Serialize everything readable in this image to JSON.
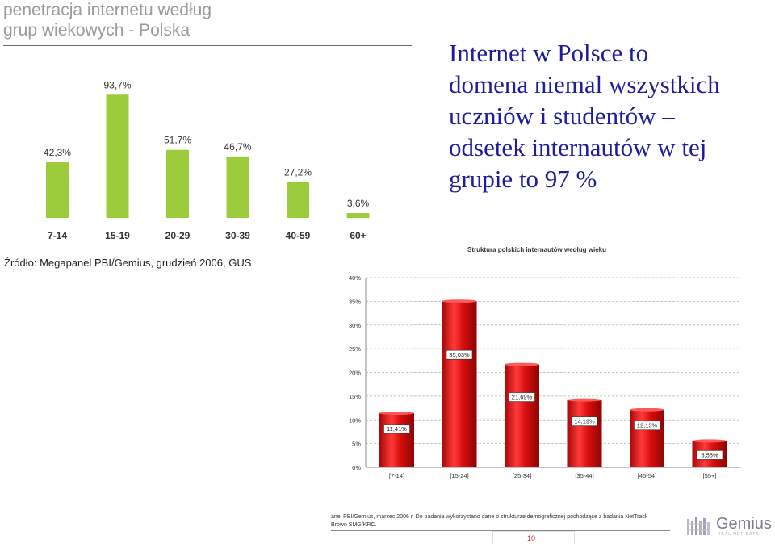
{
  "left_panel": {
    "title_line1": "penetracja internetu według",
    "title_line2": "grup wiekowych - Polska",
    "source": "Źródło: Megapanel PBI/Gemius, grudzień 2006, GUS"
  },
  "headline": {
    "line1": "Internet w Polsce to",
    "line2": "domena niemal wszystkich",
    "line3": "uczniów i studentów –",
    "line4": "odsetek internautów w tej",
    "line5": "grupie to 97 %"
  },
  "right_chart": {
    "title": "Struktura polskich internautów według wieku"
  },
  "footer": {
    "footnote_line1": "anel PBI/Gemius, marzec 2006 r. Do badania wykorzystano dane o strukturze demograficznej pochodzące z badania NetTrack",
    "footnote_line2": "Brown SMG/KRC.",
    "page_number": "10",
    "logo_text": "Gemius",
    "logo_tagline": "REAL NET DATA"
  },
  "colors": {
    "left_bar": "#9ccb3b",
    "right_bar": "#d80f0f",
    "headline": "#1d1d9a"
  },
  "chart_data": [
    {
      "type": "bar",
      "title": "penetracja internetu według grup wiekowych - Polska",
      "categories": [
        "7-14",
        "15-19",
        "20-29",
        "30-39",
        "40-59",
        "60+"
      ],
      "values": [
        42.3,
        93.7,
        51.7,
        46.7,
        27.2,
        3.6
      ],
      "value_labels": [
        "42,3%",
        "93,7%",
        "51,7%",
        "46,7%",
        "27,2%",
        "3,6%"
      ],
      "ylim": [
        0,
        100
      ],
      "grid": false
    },
    {
      "type": "bar",
      "title": "Struktura polskich internautów według wieku",
      "categories": [
        "[7-14]",
        "[15-24]",
        "[25-34]",
        "[35-44]",
        "[45-54]",
        "[55+]"
      ],
      "values": [
        11.41,
        35.03,
        21.69,
        14.19,
        12.13,
        5.55
      ],
      "value_labels": [
        "11,41%",
        "35,03%",
        "21,69%",
        "14,19%",
        "12,13%",
        "5,55%"
      ],
      "ylim": [
        0,
        40
      ],
      "yticks": [
        "0%",
        "5%",
        "10%",
        "15%",
        "20%",
        "25%",
        "30%",
        "35%",
        "40%"
      ],
      "grid": true
    }
  ]
}
